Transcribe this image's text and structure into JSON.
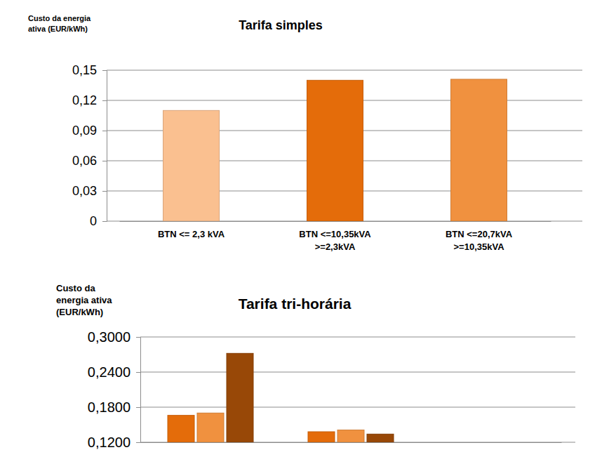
{
  "chart_data": [
    {
      "type": "bar",
      "title": "Tarifa simples",
      "y_label": "Custo da energia\nativa (EUR/kWh)",
      "categories": [
        "BTN <= 2,3 kVA",
        "BTN <=10,35kVA\n>=2,3kVA",
        "BTN <=20,7kVA\n>=10,35kVA"
      ],
      "values": [
        0.11,
        0.14,
        0.141
      ],
      "colors": [
        "#fac090",
        "#e46c0a",
        "#f0913f"
      ],
      "ylim": [
        0,
        0.15
      ],
      "yticks": [
        0,
        {
          "value": 0.03,
          "label": "0,03"
        },
        {
          "value": 0.06,
          "label": "0,06"
        },
        {
          "value": 0.09,
          "label": "0,09"
        },
        {
          "value": 0.12,
          "label": "0,12"
        },
        {
          "value": 0.15,
          "label": "0,15"
        }
      ],
      "grid": true
    },
    {
      "type": "bar",
      "title": "Tarifa tri-horária",
      "y_label": "Custo da\nenergia ativa\n(EUR/kWh)",
      "categories": [
        null,
        null,
        null
      ],
      "series": [
        {
          "color": "#e46c0a",
          "values": [
            0.166,
            0.138,
            null
          ]
        },
        {
          "color": "#f0913f",
          "values": [
            0.17,
            0.141,
            null
          ]
        },
        {
          "color": "#984807",
          "values": [
            0.272,
            0.134,
            null
          ]
        }
      ],
      "ylim": [
        0.12,
        0.3
      ],
      "yticks": [
        {
          "value": 0.12,
          "label": "0,1200"
        },
        {
          "value": 0.18,
          "label": "0,1800"
        },
        {
          "value": 0.24,
          "label": "0,2400"
        },
        {
          "value": 0.3,
          "label": "0,3000"
        }
      ],
      "grid": true
    }
  ]
}
